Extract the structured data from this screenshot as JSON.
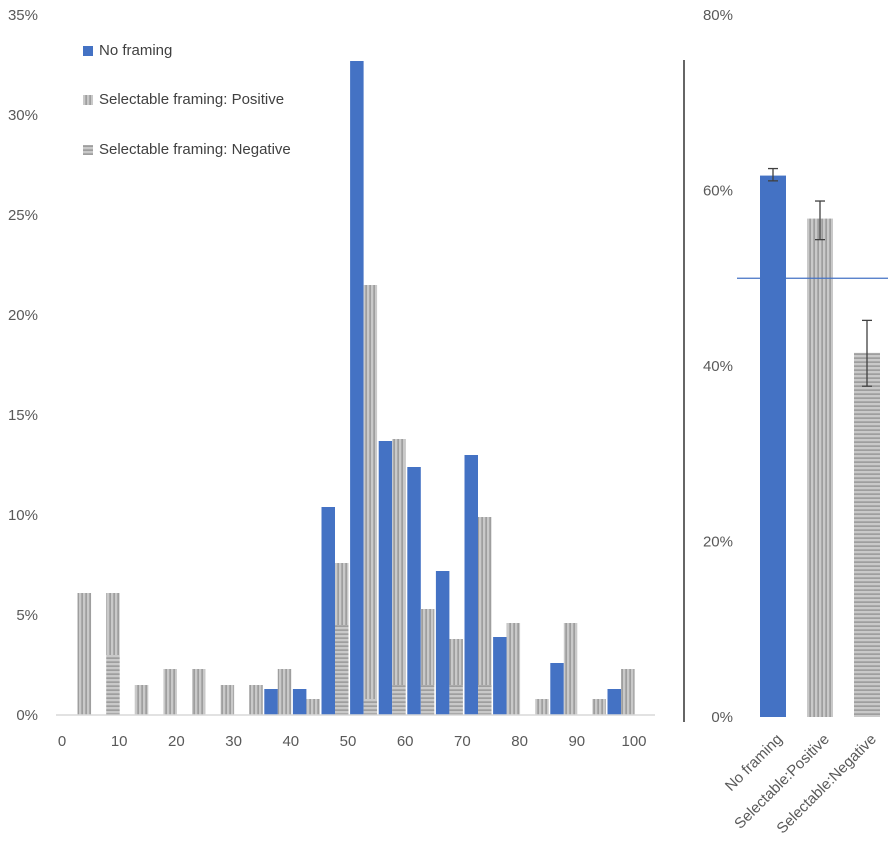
{
  "colors": {
    "no_framing": "#4472C4",
    "gray_fill": "#C9C9C9",
    "gray_stripe": "#8C8C8C",
    "axis": "#000000",
    "baseline": "#D9D9D9",
    "ref_line": "#4472C4",
    "tick_text": "#595959",
    "error_bar": "#404040"
  },
  "chart_data": [
    {
      "type": "bar",
      "grid": false,
      "legend_position": "top-left",
      "x_ticks": [
        0,
        10,
        20,
        30,
        40,
        50,
        60,
        70,
        80,
        90,
        100
      ],
      "x_tick_labels": [
        "0",
        "10",
        "20",
        "30",
        "40",
        "50",
        "60",
        "70",
        "80",
        "90",
        "100"
      ],
      "ylim": [
        0,
        0.35
      ],
      "y_ticks": [
        0,
        0.05,
        0.1,
        0.15,
        0.2,
        0.25,
        0.3,
        0.35
      ],
      "y_tick_labels": [
        "0%",
        "5%",
        "10%",
        "15%",
        "20%",
        "25%",
        "30%",
        "35%"
      ],
      "categories": [
        5,
        10,
        15,
        20,
        25,
        30,
        35,
        40,
        45,
        50,
        55,
        60,
        65,
        70,
        75,
        80,
        85,
        90,
        95,
        100
      ],
      "series": [
        {
          "name": "No framing",
          "pattern": "solid",
          "values": [
            0,
            0,
            0,
            0,
            0,
            0,
            0,
            0.013,
            0.013,
            0.104,
            0.327,
            0.137,
            0.124,
            0.072,
            0.13,
            0.039,
            0,
            0.026,
            0,
            0.013
          ]
        },
        {
          "name": "Selectable framing: Positive",
          "pattern": "vertical",
          "values": [
            0.061,
            0.061,
            0.015,
            0.023,
            0.023,
            0.015,
            0.015,
            0.023,
            0.008,
            0.076,
            0.215,
            0.138,
            0.053,
            0.038,
            0.099,
            0.046,
            0.008,
            0.046,
            0.008,
            0.023
          ]
        },
        {
          "name": "Selectable framing: Negative",
          "pattern": "horizontal",
          "values": [
            0,
            0.03,
            0,
            0,
            0,
            0,
            0,
            0,
            0,
            0.045,
            0.008,
            0.015,
            0.015,
            0.015,
            0.015,
            0,
            0,
            0,
            0,
            0
          ]
        }
      ]
    },
    {
      "type": "bar",
      "grid": false,
      "categories": [
        "No framing",
        "Selectable:Positive",
        "Selectable:Negative"
      ],
      "values": [
        0.617,
        0.568,
        0.415
      ],
      "error_low": [
        0.611,
        0.544,
        0.377
      ],
      "error_high": [
        0.625,
        0.588,
        0.452
      ],
      "patterns": [
        "solid",
        "vertical",
        "horizontal"
      ],
      "reference_line": 0.5,
      "ylim": [
        0,
        0.8
      ],
      "y_ticks": [
        0,
        0.2,
        0.4,
        0.6,
        0.8
      ],
      "y_tick_labels": [
        "0%",
        "20%",
        "40%",
        "60%",
        "80%"
      ]
    }
  ]
}
